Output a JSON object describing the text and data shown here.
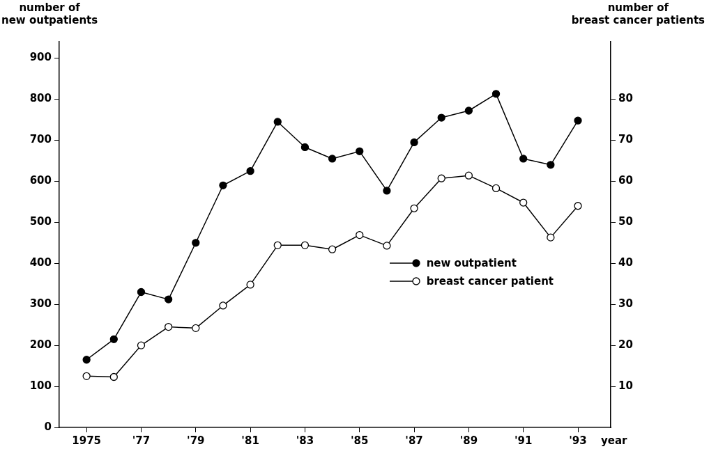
{
  "chart_data": {
    "type": "line",
    "xlabel": "year",
    "ylabel": "number of\nnew outpatients",
    "y2label": "number of\nbreast cancer patients",
    "x": [
      1975,
      1976,
      1977,
      1978,
      1979,
      1980,
      1981,
      1982,
      1983,
      1984,
      1985,
      1986,
      1987,
      1988,
      1989,
      1990,
      1991,
      1992,
      1993
    ],
    "series": [
      {
        "name": "new outpatient",
        "color": "#000000",
        "values": [
          165,
          215,
          330,
          312,
          450,
          590,
          625,
          745,
          683,
          655,
          673,
          577,
          695,
          755,
          772,
          813,
          655,
          640,
          748
        ]
      },
      {
        "name": "breast cancer patient",
        "color": "#000000",
        "axis": "y2",
        "values": [
          12.5,
          12.3,
          20,
          24.5,
          24.2,
          29.7,
          34.8,
          44.4,
          44.4,
          43.4,
          46.9,
          44.3,
          53.4,
          60.7,
          61.4,
          58.3,
          54.8,
          46.3,
          54
        ]
      }
    ],
    "xlim": [
      1974,
      1994.2
    ],
    "xticks": [
      {
        "value": 1975,
        "label": "1975"
      },
      {
        "value": 1977,
        "label": "'77"
      },
      {
        "value": 1979,
        "label": "'79"
      },
      {
        "value": 1981,
        "label": "'81"
      },
      {
        "value": 1983,
        "label": "'83"
      },
      {
        "value": 1985,
        "label": "'85"
      },
      {
        "value": 1987,
        "label": "'87"
      },
      {
        "value": 1989,
        "label": "'89"
      },
      {
        "value": 1991,
        "label": "'91"
      },
      {
        "value": 1993,
        "label": "'93"
      }
    ],
    "ylim": [
      0,
      940
    ],
    "yticks": [
      0,
      100,
      200,
      300,
      400,
      500,
      600,
      700,
      800,
      900
    ],
    "y2lim": [
      0,
      94
    ],
    "y2ticks": [
      10,
      20,
      30,
      40,
      50,
      60,
      70,
      80
    ],
    "grid": false,
    "legend": "right",
    "marker": "circle",
    "line_style": "solid"
  }
}
